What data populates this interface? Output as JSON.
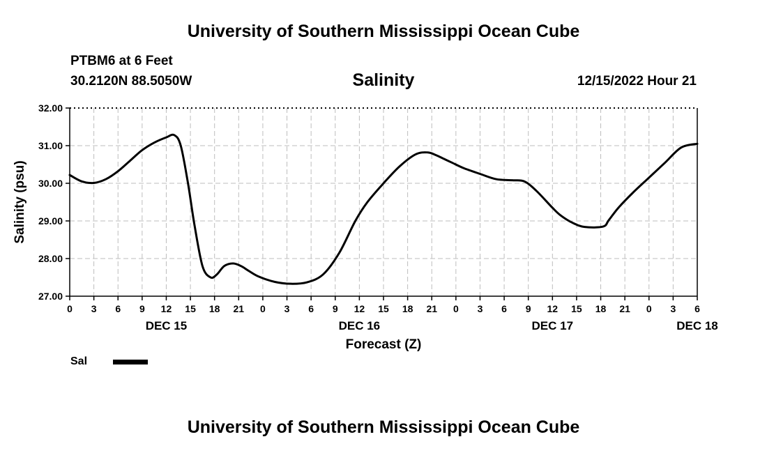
{
  "header": {
    "title": "University of Southern Mississippi Ocean Cube",
    "station": "PTBM6 at 6 Feet",
    "coordinates": "30.2120N  88.5050W",
    "parameter": "Salinity",
    "datetime": "12/15/2022 Hour 21"
  },
  "footer": {
    "title": "University of Southern Mississippi Ocean Cube"
  },
  "legend": {
    "label": "Sal"
  },
  "chart_data": {
    "type": "line",
    "title": "Salinity",
    "xlabel": "Forecast (Z)",
    "ylabel": "Salinity (psu)",
    "xlim": [
      0,
      78
    ],
    "ylim": [
      27,
      32
    ],
    "yticks": [
      "27.00",
      "28.00",
      "29.00",
      "30.00",
      "31.00",
      "32.00"
    ],
    "xtick_labels": [
      "0",
      "3",
      "6",
      "9",
      "12",
      "15",
      "18",
      "21",
      "0",
      "3",
      "6",
      "9",
      "12",
      "15",
      "18",
      "21",
      "0",
      "3",
      "6",
      "9",
      "12",
      "15",
      "18",
      "21",
      "0",
      "3",
      "6"
    ],
    "day_labels": [
      {
        "label": "DEC 15",
        "hour": 12
      },
      {
        "label": "DEC 16",
        "hour": 36
      },
      {
        "label": "DEC 17",
        "hour": 60
      },
      {
        "label": "DEC 18",
        "hour": 78
      }
    ],
    "grid": true,
    "series": [
      {
        "name": "Sal",
        "x": [
          0,
          1.5,
          3,
          4.5,
          6,
          7.5,
          9,
          10.5,
          12,
          13,
          13.8,
          14.7,
          15.5,
          16.5,
          17.5,
          18.3,
          19.2,
          20.3,
          21.3,
          22.2,
          23.5,
          25.5,
          27.5,
          29.5,
          31.5,
          33.5,
          35.5,
          37,
          39,
          41,
          43,
          44.5,
          45.5,
          46.5,
          47.5,
          49,
          51,
          53,
          55,
          56.5,
          58,
          60,
          61,
          62.5,
          64,
          66.3,
          67,
          68.2,
          70,
          72,
          74,
          76,
          78
        ],
        "values": [
          30.22,
          30.05,
          30.01,
          30.11,
          30.32,
          30.6,
          30.88,
          31.08,
          31.22,
          31.28,
          31.0,
          30.0,
          28.9,
          27.8,
          27.5,
          27.58,
          27.8,
          27.87,
          27.8,
          27.68,
          27.52,
          27.38,
          27.33,
          27.37,
          27.58,
          28.15,
          29.0,
          29.5,
          30.0,
          30.45,
          30.77,
          30.82,
          30.75,
          30.65,
          30.55,
          30.4,
          30.25,
          30.11,
          30.08,
          30.05,
          29.8,
          29.35,
          29.15,
          28.95,
          28.84,
          28.85,
          29.02,
          29.35,
          29.75,
          30.15,
          30.55,
          30.95,
          31.05
        ]
      }
    ]
  }
}
